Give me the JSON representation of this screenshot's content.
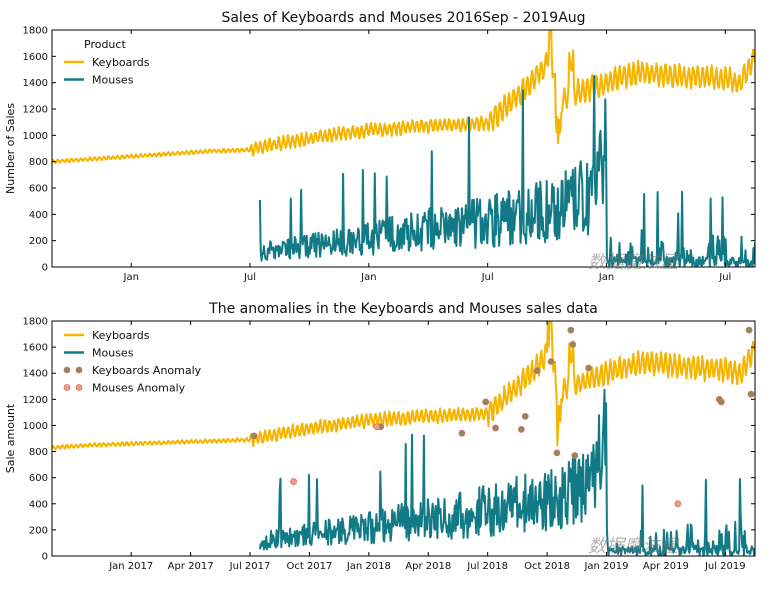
{
  "colors": {
    "keyboards": "#f5b400",
    "mouses": "#127a86",
    "anom_kb": "#8b8b62",
    "anom_ms": "#e8a089"
  },
  "watermark": "数据魔法屋",
  "chart_data": [
    {
      "type": "line",
      "title": "Sales of Keyboards and Mouses 2016Sep - 2019Aug",
      "xlabel": "",
      "ylabel": "Number of Sales",
      "ylim": [
        0,
        1800
      ],
      "yticks": [
        "0",
        "200",
        "400",
        "600",
        "800",
        "1000",
        "1200",
        "1400",
        "1600",
        "1800"
      ],
      "x_range_months": [
        0,
        35.5
      ],
      "xtick_labels": [
        {
          "m": 4,
          "label": "Jan"
        },
        {
          "m": 10,
          "label": "Jul"
        },
        {
          "m": 16,
          "label": "Jan"
        },
        {
          "m": 22,
          "label": "Jul"
        },
        {
          "m": 28,
          "label": "Jan"
        },
        {
          "m": 34,
          "label": "Jul"
        }
      ],
      "legend": {
        "title": "Product",
        "placement": "top-left"
      },
      "series": [
        {
          "name": "Keyboards",
          "x_months": [
            0,
            2,
            4,
            6,
            8,
            10,
            12,
            14,
            16,
            18,
            20,
            22,
            22.8,
            23.5,
            24.5,
            25.2,
            25.6,
            26,
            27,
            28,
            29,
            30,
            31,
            32,
            33,
            34,
            34.8,
            35.5
          ],
          "values": [
            800,
            820,
            840,
            860,
            880,
            890,
            950,
            1000,
            1040,
            1060,
            1080,
            1090,
            1200,
            1300,
            1450,
            1600,
            1200,
            1300,
            1350,
            1400,
            1450,
            1480,
            1460,
            1450,
            1440,
            1430,
            1400,
            1600
          ]
        },
        {
          "name": "Mouses",
          "x_months": [
            10.5,
            11,
            12,
            13,
            14,
            15,
            16,
            17,
            18,
            19,
            20,
            21,
            22,
            23,
            24,
            25,
            26,
            27,
            27.5,
            28,
            29,
            30,
            31,
            32,
            33,
            34,
            35,
            35.5
          ],
          "values": [
            100,
            120,
            140,
            150,
            170,
            180,
            200,
            230,
            250,
            270,
            280,
            300,
            330,
            360,
            380,
            400,
            450,
            500,
            600,
            80,
            30,
            40,
            60,
            50,
            70,
            80,
            90,
            100
          ]
        }
      ]
    },
    {
      "type": "line",
      "title": "The anomalies in the Keyboards and Mouses sales data",
      "xlabel": "",
      "ylabel": "Sale amount",
      "ylim": [
        0,
        1800
      ],
      "yticks": [
        "0",
        "200",
        "400",
        "600",
        "800",
        "1000",
        "1200",
        "1400",
        "1600",
        "1800"
      ],
      "x_range_months": [
        0,
        35.5
      ],
      "xtick_labels": [
        {
          "m": 4,
          "label": "Jan 2017"
        },
        {
          "m": 7,
          "label": "Apr 2017"
        },
        {
          "m": 10,
          "label": "Jul 2017"
        },
        {
          "m": 13,
          "label": "Oct 2017"
        },
        {
          "m": 16,
          "label": "Jan 2018"
        },
        {
          "m": 19,
          "label": "Apr 2018"
        },
        {
          "m": 22,
          "label": "Jul 2018"
        },
        {
          "m": 25,
          "label": "Oct 2018"
        },
        {
          "m": 28,
          "label": "Jan 2019"
        },
        {
          "m": 31,
          "label": "Apr 2019"
        },
        {
          "m": 34,
          "label": "Jul 2019"
        }
      ],
      "legend": {
        "title": "",
        "placement": "top-left"
      },
      "series": [
        {
          "name": "Keyboards",
          "x_months": [
            0,
            2,
            4,
            6,
            8,
            10,
            12,
            14,
            16,
            18,
            20,
            22,
            22.8,
            23.5,
            24.5,
            25.2,
            25.6,
            26,
            27,
            28,
            29,
            30,
            31,
            32,
            33,
            34,
            34.8,
            35.5
          ],
          "values": [
            830,
            850,
            860,
            870,
            880,
            890,
            950,
            1000,
            1040,
            1060,
            1080,
            1090,
            1200,
            1300,
            1450,
            1600,
            1200,
            1300,
            1350,
            1400,
            1450,
            1480,
            1460,
            1450,
            1440,
            1430,
            1400,
            1600
          ]
        },
        {
          "name": "Mouses",
          "x_months": [
            10.5,
            11,
            12,
            13,
            14,
            15,
            16,
            17,
            18,
            19,
            20,
            21,
            22,
            23,
            24,
            25,
            26,
            27,
            27.5,
            28,
            29,
            30,
            31,
            32,
            33,
            34,
            35,
            35.5
          ],
          "values": [
            100,
            120,
            140,
            150,
            170,
            180,
            200,
            230,
            250,
            270,
            280,
            300,
            330,
            360,
            380,
            400,
            450,
            500,
            600,
            80,
            30,
            40,
            60,
            50,
            70,
            80,
            90,
            100
          ]
        },
        {
          "name": "Keyboards Anomaly",
          "kind": "points",
          "points": [
            [
              10.2,
              920
            ],
            [
              16.6,
              990
            ],
            [
              20.7,
              940
            ],
            [
              21.9,
              1180
            ],
            [
              22.4,
              980
            ],
            [
              23.7,
              970
            ],
            [
              23.9,
              1070
            ],
            [
              24.5,
              1420
            ],
            [
              25.2,
              1490
            ],
            [
              25.5,
              790
            ],
            [
              26.2,
              1730
            ],
            [
              26.3,
              1620
            ],
            [
              26.4,
              770
            ],
            [
              27.1,
              1440
            ],
            [
              33.7,
              1200
            ],
            [
              33.8,
              1180
            ],
            [
              35.2,
              1730
            ],
            [
              35.3,
              1240
            ]
          ]
        },
        {
          "name": "Mouses Anomaly",
          "kind": "points",
          "points": [
            [
              12.2,
              570
            ],
            [
              16.4,
              990
            ],
            [
              31.6,
              400
            ]
          ]
        }
      ]
    }
  ]
}
